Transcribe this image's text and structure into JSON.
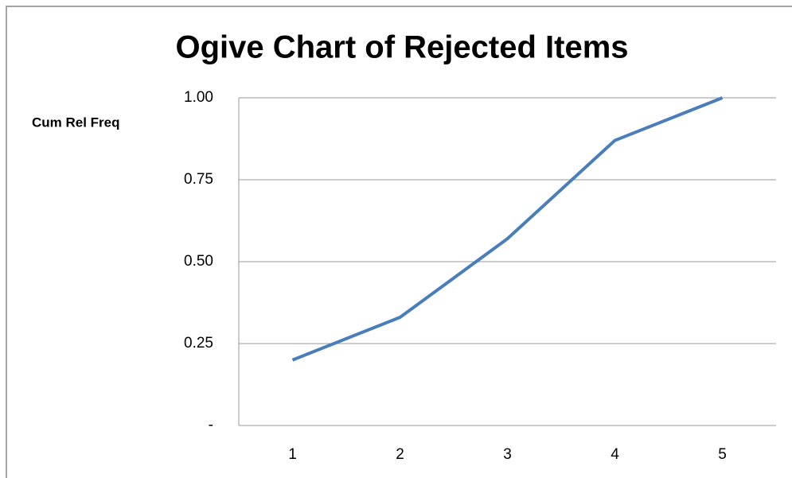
{
  "chart_data": {
    "type": "line",
    "title": "Ogive Chart of Rejected Items",
    "y_label": "Cum Rel Freq",
    "categories": [
      "1",
      "2",
      "3",
      "4",
      "5"
    ],
    "values": [
      0.2,
      0.33,
      0.57,
      0.87,
      1.0
    ],
    "color": "#4a7ebb",
    "ylim": [
      0,
      1
    ],
    "yticks": [
      {
        "value": 0,
        "label": "-"
      },
      0.25,
      {
        "value": 0.5,
        "label": "0.50"
      },
      {
        "value": 0.75,
        "label": "0.75"
      },
      {
        "value": 1,
        "label": "1.00"
      }
    ],
    "grid": true
  }
}
